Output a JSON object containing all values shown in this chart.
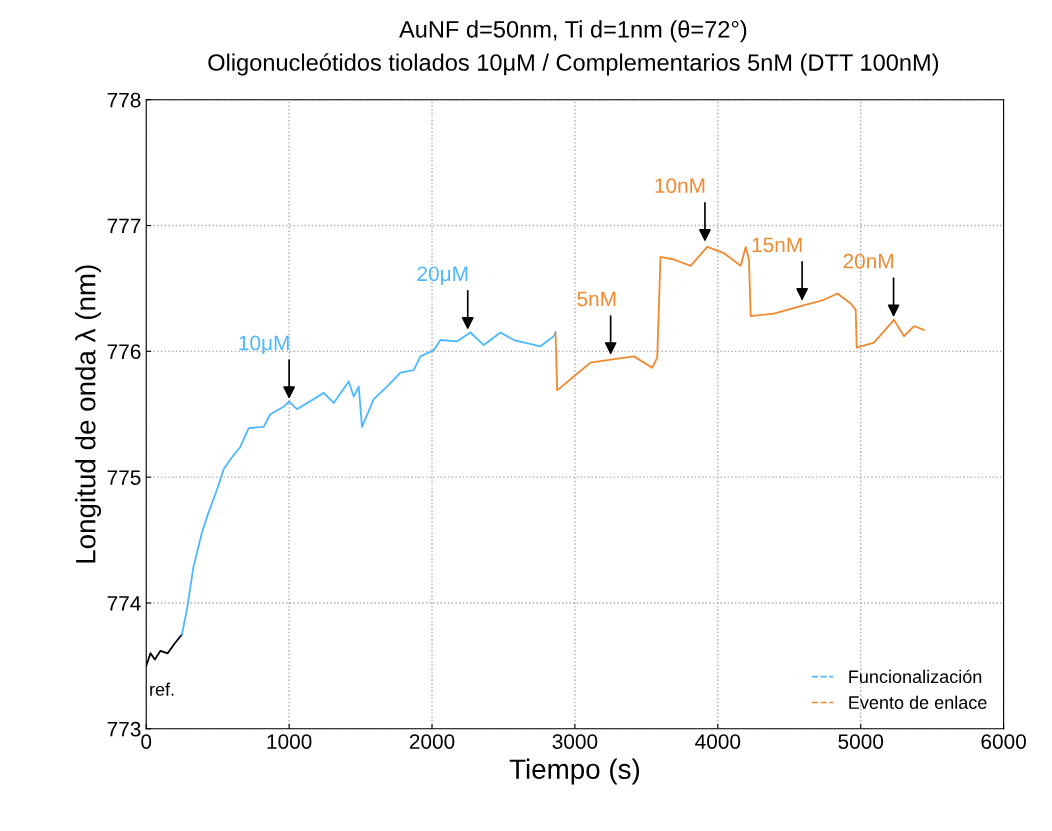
{
  "chart_data": {
    "type": "line",
    "title": "AuNF d=50nm, Ti d=1nm (θ=72°)",
    "subtitle": "Oligonucleótidos tiolados 10μM / Complementarios 5nM (DTT 100nM)",
    "xlabel": "Tiempo (s)",
    "ylabel": "Longitud de onda λ (nm)",
    "series": [
      {
        "color": "#000000",
        "x": [
          0,
          30,
          60,
          100,
          150,
          200,
          250
        ],
        "values": [
          773.5,
          773.6,
          773.55,
          773.62,
          773.6,
          773.68,
          773.75
        ]
      },
      {
        "name": "Funcionalización",
        "color": "#4db8ff",
        "x": [
          250,
          285,
          331,
          390,
          436,
          495,
          541,
          588,
          658,
          717,
          822,
          868,
          962,
          1000,
          1055,
          1242,
          1312,
          1417,
          1452,
          1487,
          1510,
          1592,
          1685,
          1779,
          1872,
          1919,
          2012,
          2059,
          2176,
          2269,
          2362,
          2479,
          2572,
          2759,
          2852,
          2864
        ],
        "values": [
          773.75,
          773.95,
          774.29,
          774.56,
          774.72,
          774.9,
          775.06,
          775.14,
          775.24,
          775.39,
          775.4,
          775.5,
          775.56,
          775.6,
          775.54,
          775.67,
          775.59,
          775.76,
          775.64,
          775.72,
          775.4,
          775.62,
          775.72,
          775.83,
          775.85,
          775.96,
          776.01,
          776.09,
          776.08,
          776.15,
          776.05,
          776.15,
          776.09,
          776.04,
          776.12,
          776.15
        ]
      },
      {
        "name": "Evento de enlace",
        "color": "#f08a30",
        "x": [
          2864,
          2876,
          2992,
          3109,
          3226,
          3413,
          3541,
          3576,
          3599,
          3693,
          3810,
          3926,
          4043,
          4160,
          4195,
          4218,
          4230,
          4393,
          4580,
          4743,
          4837,
          4930,
          4965,
          4972,
          5093,
          5233,
          5303,
          5373,
          5443
        ],
        "values": [
          776.15,
          775.69,
          775.8,
          775.91,
          775.93,
          775.96,
          775.87,
          775.95,
          776.75,
          776.73,
          776.68,
          776.83,
          776.78,
          776.68,
          776.83,
          776.73,
          776.28,
          776.3,
          776.36,
          776.41,
          776.46,
          776.38,
          776.33,
          776.03,
          776.07,
          776.25,
          776.12,
          776.2,
          776.17
        ]
      }
    ],
    "annotations": [
      {
        "text": "ref.",
        "x": 0,
        "y": 773.5
      },
      {
        "text": "10μM",
        "x": 1000,
        "y": 775.6
      },
      {
        "text": "20μM",
        "x": 2250,
        "y": 776.15
      },
      {
        "text": "5nM",
        "x": 3250,
        "y": 775.95
      },
      {
        "text": "10nM",
        "x": 3910,
        "y": 776.85
      },
      {
        "text": "15nM",
        "x": 4590,
        "y": 776.38
      },
      {
        "text": "20nM",
        "x": 5230,
        "y": 776.25
      }
    ],
    "xlim": [
      0,
      6000
    ],
    "xticks": [
      0,
      1000,
      2000,
      3000,
      4000,
      5000,
      6000
    ],
    "ylim": [
      773,
      778
    ],
    "yticks": [
      773,
      774,
      775,
      776,
      777,
      778
    ],
    "grid": true,
    "legend": "bottom right",
    "line_style": "solid",
    "marker": "none"
  }
}
